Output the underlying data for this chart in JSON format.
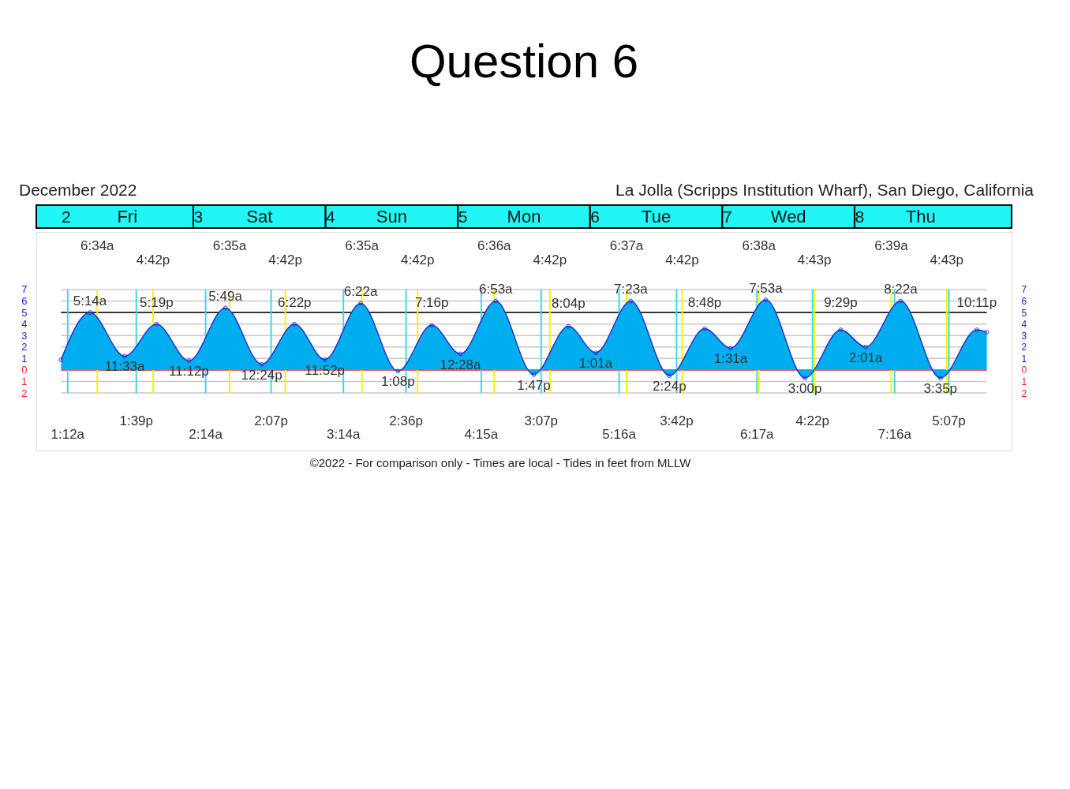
{
  "chart_data": {
    "type": "area",
    "title": "Question 6",
    "subtitle": "December 2022",
    "x": [
      "2022-12-02T00:00",
      "2022-12-02T05:14",
      "2022-12-02T11:33",
      "2022-12-02T17:19",
      "2022-12-02T23:12",
      "2022-12-03T05:49",
      "2022-12-03T12:24",
      "2022-12-03T18:22",
      "2022-12-03T23:52",
      "2022-12-04T06:22",
      "2022-12-04T13:08",
      "2022-12-04T19:16",
      "2022-12-05T00:28",
      "2022-12-05T06:53",
      "2022-12-05T13:47",
      "2022-12-05T20:04",
      "2022-12-06T01:01",
      "2022-12-06T07:23",
      "2022-12-06T14:24",
      "2022-12-06T20:48",
      "2022-12-07T01:31",
      "2022-12-07T07:53",
      "2022-12-07T15:00",
      "2022-12-07T21:29",
      "2022-12-08T02:01",
      "2022-12-08T08:22",
      "2022-12-08T15:35",
      "2022-12-08T22:11",
      "2022-12-09T00:00"
    ],
    "series": [
      {
        "color": "#00aeef",
        "values": [
          0.9,
          5.0,
          1.2,
          4.0,
          0.8,
          5.4,
          0.5,
          4.0,
          0.9,
          5.8,
          -0.1,
          3.9,
          1.4,
          6.0,
          -0.4,
          3.8,
          1.5,
          6.0,
          -0.5,
          3.6,
          1.9,
          6.1,
          -0.7,
          3.5,
          2.0,
          6.0,
          -0.7,
          3.5,
          3.3
        ]
      }
    ],
    "marker": "circle",
    "grid": true,
    "xlim": [
      "2022-12-01T19:30",
      "2022-12-09T04:30"
    ],
    "xticks": [
      {
        "value": "2022-12-02T00:00",
        "label": "2"
      },
      {
        "value": "2022-12-03T00:00",
        "label": "3"
      },
      {
        "value": "2022-12-04T00:00",
        "label": "4"
      },
      {
        "value": "2022-12-05T00:00",
        "label": "5"
      },
      {
        "value": "2022-12-06T00:00",
        "label": "6"
      },
      {
        "value": "2022-12-07T00:00",
        "label": "7"
      },
      {
        "value": "2022-12-08T00:00",
        "label": "8"
      }
    ],
    "ylim": [
      -7,
      12
    ],
    "yticks": [
      {
        "value": -2,
        "label": "2"
      },
      {
        "value": -1,
        "label": "1"
      },
      {
        "value": 0,
        "label": "0"
      },
      {
        "value": 1,
        "label": "1"
      },
      {
        "value": 2,
        "label": "2"
      },
      {
        "value": 3,
        "label": "3"
      },
      {
        "value": 4,
        "label": "4"
      },
      {
        "value": 5,
        "label": "5"
      },
      {
        "value": 6,
        "label": "6"
      },
      {
        "value": 7,
        "label": "7"
      }
    ],
    "y2lim": [
      -7,
      12
    ],
    "y2ticks": [
      {
        "value": -2,
        "label": "2"
      },
      {
        "value": -1,
        "label": "1"
      },
      {
        "value": 0,
        "label": "0"
      },
      {
        "value": 1,
        "label": "1"
      },
      {
        "value": 2,
        "label": "2"
      },
      {
        "value": 3,
        "label": "3"
      },
      {
        "value": 4,
        "label": "4"
      },
      {
        "value": 5,
        "label": "5"
      },
      {
        "value": 6,
        "label": "6"
      },
      {
        "value": 7,
        "label": "7"
      }
    ],
    "ref_lines": [
      {
        "axis": "y",
        "value": 0,
        "color": "#ee3333"
      },
      {
        "axis": "y",
        "value": 5,
        "color": "#000000"
      },
      {
        "axis": "x",
        "value": "2022-12-02T06:34",
        "label": "6:34a",
        "color": "#f5f500"
      },
      {
        "axis": "x",
        "value": "2022-12-02T16:42",
        "label": "4:42p",
        "color": "#f5f500"
      },
      {
        "axis": "x",
        "value": "2022-12-03T06:35",
        "label": "6:35a",
        "color": "#f5f500"
      },
      {
        "axis": "x",
        "value": "2022-12-03T16:42",
        "label": "4:42p",
        "color": "#f5f500"
      },
      {
        "axis": "x",
        "value": "2022-12-04T06:35",
        "label": "6:35a",
        "color": "#f5f500"
      },
      {
        "axis": "x",
        "value": "2022-12-04T16:42",
        "label": "4:42p",
        "color": "#f5f500"
      },
      {
        "axis": "x",
        "value": "2022-12-05T06:36",
        "label": "6:36a",
        "color": "#f5f500"
      },
      {
        "axis": "x",
        "value": "2022-12-05T16:42",
        "label": "4:42p",
        "color": "#f5f500"
      },
      {
        "axis": "x",
        "value": "2022-12-06T06:37",
        "label": "6:37a",
        "color": "#f5f500"
      },
      {
        "axis": "x",
        "value": "2022-12-06T16:42",
        "label": "4:42p",
        "color": "#f5f500"
      },
      {
        "axis": "x",
        "value": "2022-12-07T06:38",
        "label": "6:38a",
        "color": "#f5f500"
      },
      {
        "axis": "x",
        "value": "2022-12-07T16:43",
        "label": "4:43p",
        "color": "#f5f500"
      },
      {
        "axis": "x",
        "value": "2022-12-08T06:39",
        "label": "6:39a",
        "color": "#f5f500"
      },
      {
        "axis": "x",
        "value": "2022-12-08T16:43",
        "label": "4:43p",
        "color": "#f5f500"
      },
      {
        "axis": "x",
        "value": "2022-12-02T01:12",
        "label": "1:12a",
        "color": "#40d8e8"
      },
      {
        "axis": "x",
        "value": "2022-12-02T13:39",
        "label": "1:39p",
        "color": "#40d8e8"
      },
      {
        "axis": "x",
        "value": "2022-12-03T02:14",
        "label": "2:14a",
        "color": "#40d8e8"
      },
      {
        "axis": "x",
        "value": "2022-12-03T14:07",
        "label": "2:07p",
        "color": "#40d8e8"
      },
      {
        "axis": "x",
        "value": "2022-12-04T03:14",
        "label": "3:14a",
        "color": "#40d8e8"
      },
      {
        "axis": "x",
        "value": "2022-12-04T14:36",
        "label": "2:36p",
        "color": "#40d8e8"
      },
      {
        "axis": "x",
        "value": "2022-12-05T04:15",
        "label": "4:15a",
        "color": "#40d8e8"
      },
      {
        "axis": "x",
        "value": "2022-12-05T15:07",
        "label": "3:07p",
        "color": "#40d8e8"
      },
      {
        "axis": "x",
        "value": "2022-12-06T05:16",
        "label": "5:16a",
        "color": "#40d8e8"
      },
      {
        "axis": "x",
        "value": "2022-12-06T15:42",
        "label": "3:42p",
        "color": "#40d8e8"
      },
      {
        "axis": "x",
        "value": "2022-12-07T06:17",
        "label": "6:17a",
        "color": "#40d8e8"
      },
      {
        "axis": "x",
        "value": "2022-12-07T16:22",
        "label": "4:22p",
        "color": "#40d8e8"
      },
      {
        "axis": "x",
        "value": "2022-12-08T07:16",
        "label": "7:16a",
        "color": "#40d8e8"
      },
      {
        "axis": "x",
        "value": "2022-12-08T17:07",
        "label": "5:07p",
        "color": "#40d8e8"
      }
    ],
    "annotations": [
      "La Jolla (Scripps Institution Wharf), San Diego, California",
      "Fri",
      "Sat",
      "Sun",
      "Mon",
      "Tue",
      "Wed",
      "Thu",
      {
        "text": "5:14a",
        "x": "2022-12-02T05:14",
        "y": 5.0
      },
      {
        "text": "11:33a",
        "x": "2022-12-02T11:33",
        "y": 1.2
      },
      {
        "text": "5:19p",
        "x": "2022-12-02T17:19",
        "y": 4.0
      },
      {
        "text": "11:12p",
        "x": "2022-12-02T23:12",
        "y": 0.8
      },
      {
        "text": "5:49a",
        "x": "2022-12-03T05:49",
        "y": 5.4
      },
      {
        "text": "12:24p",
        "x": "2022-12-03T12:24",
        "y": 0.5
      },
      {
        "text": "6:22p",
        "x": "2022-12-03T18:22",
        "y": 4.0
      },
      {
        "text": "11:52p",
        "x": "2022-12-03T23:52",
        "y": 0.9
      },
      {
        "text": "6:22a",
        "x": "2022-12-04T06:22",
        "y": 5.8
      },
      {
        "text": "1:08p",
        "x": "2022-12-04T13:08",
        "y": -0.1
      },
      {
        "text": "7:16p",
        "x": "2022-12-04T19:16",
        "y": 3.9
      },
      {
        "text": "12:28a",
        "x": "2022-12-05T00:28",
        "y": 1.4
      },
      {
        "text": "6:53a",
        "x": "2022-12-05T06:53",
        "y": 6.0
      },
      {
        "text": "1:47p",
        "x": "2022-12-05T13:47",
        "y": -0.4
      },
      {
        "text": "8:04p",
        "x": "2022-12-05T20:04",
        "y": 3.8
      },
      {
        "text": "1:01a",
        "x": "2022-12-06T01:01",
        "y": 1.5
      },
      {
        "text": "7:23a",
        "x": "2022-12-06T07:23",
        "y": 6.0
      },
      {
        "text": "2:24p",
        "x": "2022-12-06T14:24",
        "y": -0.5
      },
      {
        "text": "8:48p",
        "x": "2022-12-06T20:48",
        "y": 3.6
      },
      {
        "text": "1:31a",
        "x": "2022-12-07T01:31",
        "y": 1.9
      },
      {
        "text": "7:53a",
        "x": "2022-12-07T07:53",
        "y": 6.1
      },
      {
        "text": "3:00p",
        "x": "2022-12-07T15:00",
        "y": -0.7
      },
      {
        "text": "9:29p",
        "x": "2022-12-07T21:29",
        "y": 3.5
      },
      {
        "text": "2:01a",
        "x": "2022-12-08T02:01",
        "y": 2.0
      },
      {
        "text": "8:22a",
        "x": "2022-12-08T08:22",
        "y": 6.0
      },
      {
        "text": "3:35p",
        "x": "2022-12-08T15:35",
        "y": -0.7
      },
      {
        "text": "10:11p",
        "x": "2022-12-08T22:11",
        "y": 3.5
      },
      "©2022 - For comparison only - Times are local - Tides in feet from MLLW"
    ]
  }
}
